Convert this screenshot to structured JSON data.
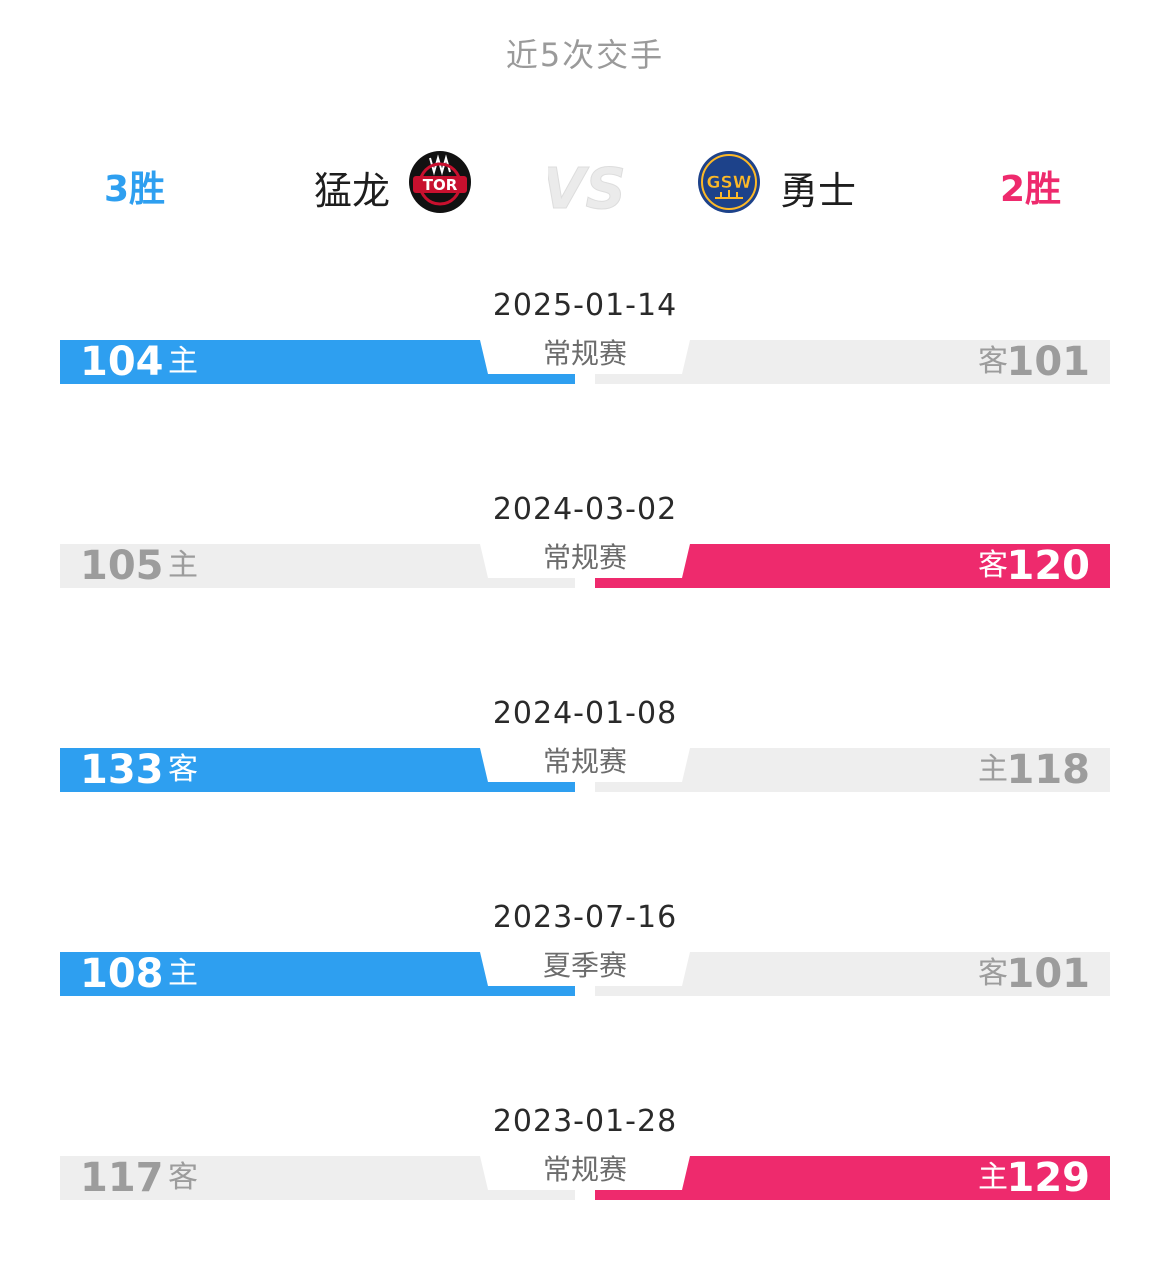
{
  "title": "近5次交手",
  "home_team": {
    "name": "猛龙",
    "logo_text": "TOR",
    "wins": "3胜",
    "color": "#2e9ff0"
  },
  "away_team": {
    "name": "勇士",
    "logo_text": "GSW",
    "wins": "2胜",
    "color": "#ee2a6d"
  },
  "vs_icon": "vs-icon",
  "matches": [
    {
      "date": "2025-01-14",
      "stage": "常规赛",
      "left_score": "104",
      "left_venue": "主",
      "right_score": "101",
      "right_venue": "客",
      "winner": "left"
    },
    {
      "date": "2024-03-02",
      "stage": "常规赛",
      "left_score": "105",
      "left_venue": "主",
      "right_score": "120",
      "right_venue": "客",
      "winner": "right"
    },
    {
      "date": "2024-01-08",
      "stage": "常规赛",
      "left_score": "133",
      "left_venue": "客",
      "right_score": "118",
      "right_venue": "主",
      "winner": "left"
    },
    {
      "date": "2023-07-16",
      "stage": "夏季赛",
      "left_score": "108",
      "left_venue": "主",
      "right_score": "101",
      "right_venue": "客",
      "winner": "left"
    },
    {
      "date": "2023-01-28",
      "stage": "常规赛",
      "left_score": "117",
      "left_venue": "客",
      "right_score": "129",
      "right_venue": "主",
      "winner": "right"
    }
  ],
  "colors": {
    "lose_bar": "#eeeeee",
    "win_left": "#2e9ff0",
    "win_right": "#ee2a6d"
  }
}
